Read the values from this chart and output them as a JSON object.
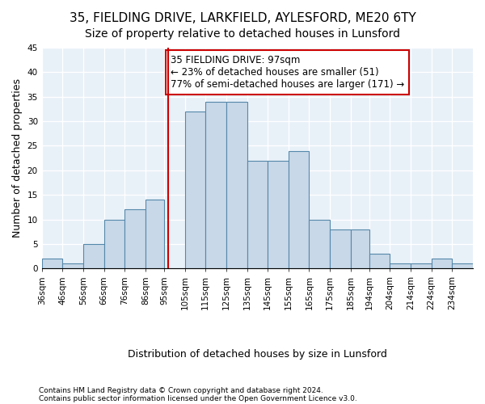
{
  "title1": "35, FIELDING DRIVE, LARKFIELD, AYLESFORD, ME20 6TY",
  "title2": "Size of property relative to detached houses in Lunsford",
  "xlabel": "Distribution of detached houses by size in Lunsford",
  "ylabel": "Number of detached properties",
  "footnote1": "Contains HM Land Registry data © Crown copyright and database right 2024.",
  "footnote2": "Contains public sector information licensed under the Open Government Licence v3.0.",
  "bin_labels": [
    "36sqm",
    "46sqm",
    "56sqm",
    "66sqm",
    "76sqm",
    "86sqm",
    "95sqm",
    "105sqm",
    "115sqm",
    "125sqm",
    "135sqm",
    "145sqm",
    "155sqm",
    "165sqm",
    "175sqm",
    "185sqm",
    "194sqm",
    "204sqm",
    "214sqm",
    "224sqm",
    "234sqm"
  ],
  "bin_edges": [
    36,
    46,
    56,
    66,
    76,
    86,
    95,
    105,
    115,
    125,
    135,
    145,
    155,
    165,
    175,
    185,
    194,
    204,
    214,
    224,
    234,
    244
  ],
  "values": [
    2,
    1,
    5,
    10,
    12,
    14,
    0,
    32,
    34,
    34,
    22,
    22,
    24,
    10,
    8,
    8,
    3,
    1,
    1,
    2,
    1
  ],
  "bar_color": "#c8d8e8",
  "bar_edge_color": "#5588aa",
  "property_value": 97,
  "vline_color": "#cc0000",
  "annotation_text": "35 FIELDING DRIVE: 97sqm\n← 23% of detached houses are smaller (51)\n77% of semi-detached houses are larger (171) →",
  "annotation_box_color": "white",
  "annotation_box_edge_color": "#cc0000",
  "ylim": [
    0,
    45
  ],
  "yticks": [
    0,
    5,
    10,
    15,
    20,
    25,
    30,
    35,
    40,
    45
  ],
  "background_color": "#e8f0f8",
  "grid_color": "white",
  "title1_fontsize": 11,
  "title2_fontsize": 10,
  "xlabel_fontsize": 9,
  "ylabel_fontsize": 9,
  "tick_fontsize": 7.5,
  "annotation_fontsize": 8.5
}
